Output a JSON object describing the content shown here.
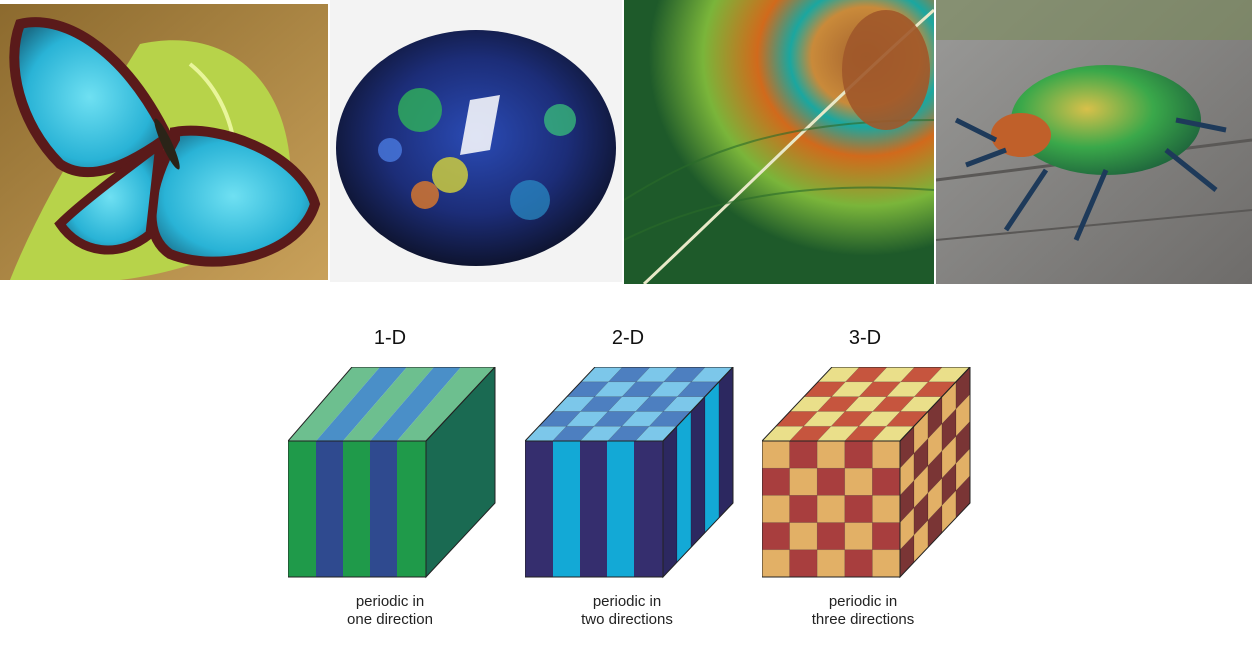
{
  "photos": [
    {
      "name": "blue-morpho-butterfly"
    },
    {
      "name": "opal-gemstone"
    },
    {
      "name": "peacock-feather"
    },
    {
      "name": "iridescent-beetle"
    }
  ],
  "crystals": [
    {
      "title": "1-D",
      "caption_line1": "periodic in",
      "caption_line2": "one direction"
    },
    {
      "title": "2-D",
      "caption_line1": "periodic in",
      "caption_line2": "two directions"
    },
    {
      "title": "3-D",
      "caption_line1": "periodic in",
      "caption_line2": "three directions"
    }
  ],
  "colors": {
    "one_d": [
      "#1f9a4a",
      "#2f4a8f",
      "#6dbf8f",
      "#4a8fc8",
      "#1a6a52"
    ],
    "two_d": [
      "#352e6e",
      "#13a9d6",
      "#4d7fc0",
      "#7cc7ea",
      "#2c2860"
    ],
    "three_d": [
      "#a83e3e",
      "#e2b066",
      "#eadf8a",
      "#c6553e",
      "#7a3535"
    ]
  }
}
